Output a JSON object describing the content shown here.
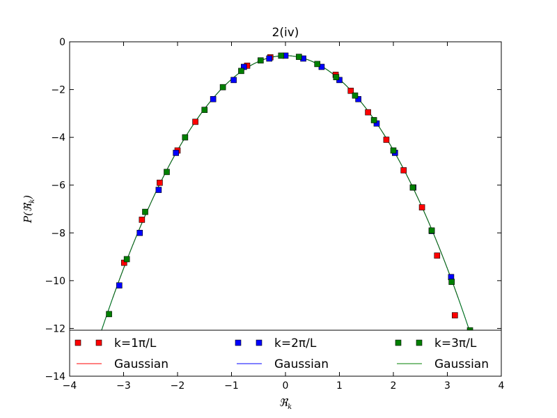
{
  "chart_data": {
    "type": "scatter",
    "title": "2(iv)",
    "xlabel": "ℜ",
    "xlabel_sub": "k",
    "ylabel": "P(ℜ",
    "ylabel_sub": "k",
    "ylabel_close": ")",
    "xlim": [
      -4,
      4
    ],
    "ylim": [
      -14,
      0
    ],
    "xticks": [
      -4,
      -3,
      -2,
      -1,
      0,
      1,
      2,
      3,
      4
    ],
    "yticks": [
      0,
      -2,
      -4,
      -6,
      -8,
      -10,
      -12,
      -14
    ],
    "xtick_labels": [
      "−4",
      "−3",
      "−2",
      "−1",
      "0",
      "1",
      "2",
      "3",
      "4"
    ],
    "ytick_labels": [
      "0",
      "−2",
      "−4",
      "−6",
      "−8",
      "−10",
      "−12",
      "−14"
    ],
    "legend_placement": "lower-center",
    "series": [
      {
        "name": "k=1π/L",
        "marker": "square",
        "color": "#ff0000",
        "x": [
          -2.99,
          -2.66,
          -2.33,
          -2.0,
          -1.67,
          -0.71,
          -0.28,
          0.93,
          1.21,
          1.53,
          1.87,
          2.19,
          2.53,
          2.81,
          3.14
        ],
        "y": [
          -9.25,
          -7.45,
          -5.9,
          -4.55,
          -3.35,
          -1.0,
          -0.65,
          -1.38,
          -2.05,
          -2.95,
          -4.1,
          -5.38,
          -6.93,
          -8.95,
          -11.45
        ]
      },
      {
        "name": "k=2π/L",
        "marker": "square",
        "color": "#0000ff",
        "x": [
          -3.08,
          -2.7,
          -2.35,
          -2.03,
          -1.34,
          -0.96,
          -0.77,
          -0.3,
          0.0,
          0.33,
          0.67,
          1.0,
          1.35,
          1.69,
          2.03,
          2.37,
          2.71,
          3.07
        ],
        "y": [
          -10.2,
          -8.0,
          -6.2,
          -4.65,
          -2.4,
          -1.6,
          -1.05,
          -0.7,
          -0.58,
          -0.7,
          -1.05,
          -1.6,
          -2.4,
          -3.42,
          -4.65,
          -6.1,
          -7.92,
          -9.85
        ]
      },
      {
        "name": "k=3π/L",
        "marker": "square",
        "color": "#008000",
        "x": [
          -3.27,
          -2.94,
          -2.6,
          -2.2,
          -1.86,
          -1.5,
          -1.16,
          -0.82,
          -0.46,
          -0.08,
          0.25,
          0.59,
          0.94,
          1.29,
          1.64,
          2.0,
          2.36,
          2.71,
          3.08,
          3.42
        ],
        "y": [
          -11.4,
          -9.1,
          -7.12,
          -5.45,
          -4.0,
          -2.85,
          -1.9,
          -1.22,
          -0.78,
          -0.58,
          -0.63,
          -0.93,
          -1.48,
          -2.25,
          -3.28,
          -4.55,
          -6.1,
          -7.9,
          -10.05,
          -12.08
        ]
      },
      {
        "name": "Gaussian",
        "type": "line",
        "color": "#ff0000",
        "x_range": [
          -3.2,
          3.2
        ]
      },
      {
        "name": "Gaussian",
        "type": "line",
        "color": "#0000ff",
        "x_range": [
          -3.6,
          3.6
        ]
      },
      {
        "name": "Gaussian",
        "type": "line",
        "color": "#008000",
        "x_range": [
          -3.6,
          3.6
        ]
      }
    ],
    "gaussian_model": {
      "peak_x": 0.0,
      "peak_y": -0.58,
      "curvature": 0.99
    }
  }
}
